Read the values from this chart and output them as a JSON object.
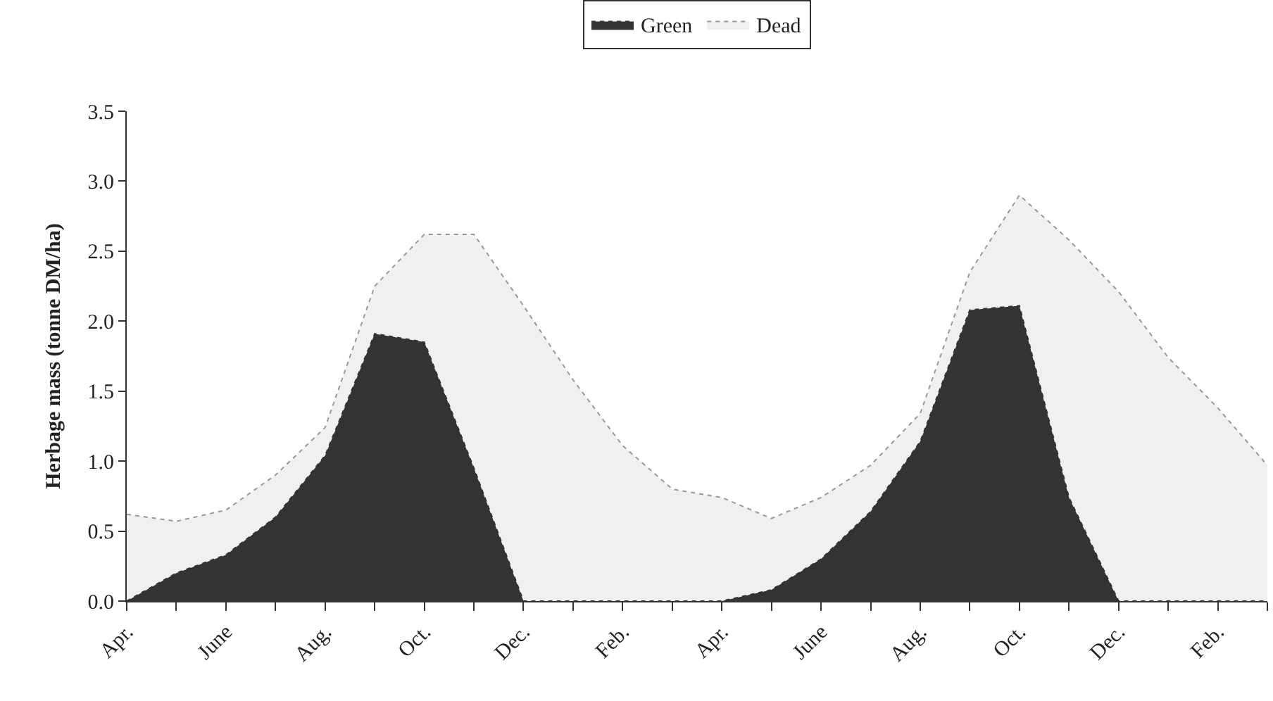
{
  "chart_data": {
    "type": "area",
    "stacked": true,
    "ylabel": "Herbage mass (tonne DM/ha)",
    "categories": [
      "Apr.",
      null,
      "June",
      null,
      "Aug.",
      null,
      "Oct.",
      null,
      "Dec.",
      null,
      "Feb.",
      null,
      "Apr.",
      null,
      "June",
      null,
      "Aug.",
      null,
      "Oct.",
      null,
      "Dec.",
      null,
      "Feb.",
      null
    ],
    "series": [
      {
        "name": "Green",
        "color": "#333333",
        "values": [
          0,
          0.2,
          0.33,
          0.6,
          1.04,
          1.91,
          1.85,
          0.95,
          0,
          0,
          0,
          0,
          0,
          0.08,
          0.3,
          0.64,
          1.14,
          2.08,
          2.11,
          0.74,
          0,
          0,
          0,
          0
        ]
      },
      {
        "name": "Dead",
        "color": "#999999",
        "values": [
          0.62,
          0.37,
          0.32,
          0.3,
          0.2,
          0.34,
          0.77,
          1.67,
          2.11,
          1.58,
          1.11,
          0.8,
          0.74,
          0.51,
          0.44,
          0.33,
          0.2,
          0.27,
          0.79,
          1.84,
          2.21,
          1.74,
          1.38,
          0.97
        ]
      }
    ],
    "ylim": [
      0,
      3.5
    ],
    "yticks": [
      {
        "value": 0,
        "label": "0.0"
      },
      {
        "value": 0.5,
        "label": "0.5"
      },
      {
        "value": 1,
        "label": "1.0"
      },
      {
        "value": 1.5,
        "label": "1.5"
      },
      {
        "value": 2,
        "label": "2.0"
      },
      {
        "value": 2.5,
        "label": "2.5"
      },
      {
        "value": 3,
        "label": "3.0"
      },
      {
        "value": 3.5,
        "label": "3.5"
      }
    ],
    "legend": "top",
    "line_style": "dotted"
  }
}
